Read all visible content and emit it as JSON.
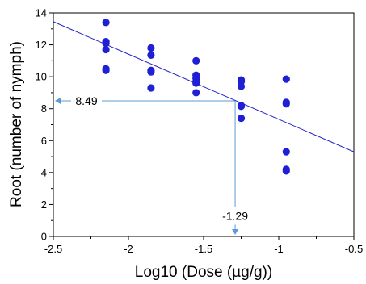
{
  "chart_data": {
    "type": "scatter",
    "title": "",
    "xlabel": "Log10 (Dose (µg/g))",
    "ylabel": "Root (number of nymph)",
    "xlim": [
      -2.5,
      -0.5
    ],
    "ylim": [
      0,
      14
    ],
    "xticks": [
      "-2.5",
      "-2",
      "-1.5",
      "-1",
      "-0.5"
    ],
    "yticks": [
      "0",
      "2",
      "4",
      "6",
      "8",
      "10",
      "12",
      "14"
    ],
    "grid": false,
    "colors": {
      "points": "#1f1fd6",
      "fit_line": "#2323c8",
      "annotation": "#5b9bd5"
    },
    "points": [
      {
        "x": -2.15,
        "y": 13.4
      },
      {
        "x": -2.15,
        "y": 12.2
      },
      {
        "x": -2.15,
        "y": 12.1
      },
      {
        "x": -2.15,
        "y": 11.7
      },
      {
        "x": -2.15,
        "y": 10.5
      },
      {
        "x": -2.15,
        "y": 10.4
      },
      {
        "x": -1.85,
        "y": 11.8
      },
      {
        "x": -1.85,
        "y": 11.35
      },
      {
        "x": -1.85,
        "y": 10.4
      },
      {
        "x": -1.85,
        "y": 10.3
      },
      {
        "x": -1.85,
        "y": 9.3
      },
      {
        "x": -1.55,
        "y": 11.0
      },
      {
        "x": -1.55,
        "y": 10.1
      },
      {
        "x": -1.55,
        "y": 9.9
      },
      {
        "x": -1.55,
        "y": 9.7
      },
      {
        "x": -1.55,
        "y": 9.6
      },
      {
        "x": -1.55,
        "y": 9.0
      },
      {
        "x": -1.25,
        "y": 9.8
      },
      {
        "x": -1.25,
        "y": 9.7
      },
      {
        "x": -1.25,
        "y": 9.4
      },
      {
        "x": -1.25,
        "y": 8.2
      },
      {
        "x": -1.25,
        "y": 8.15
      },
      {
        "x": -1.25,
        "y": 7.4
      },
      {
        "x": -0.95,
        "y": 9.85
      },
      {
        "x": -0.95,
        "y": 8.4
      },
      {
        "x": -0.95,
        "y": 8.3
      },
      {
        "x": -0.95,
        "y": 5.3
      },
      {
        "x": -0.95,
        "y": 4.2
      },
      {
        "x": -0.95,
        "y": 4.1
      }
    ],
    "fit_line": {
      "x": [
        -2.5,
        -0.5
      ],
      "y": [
        13.45,
        5.3
      ]
    },
    "annotations": [
      {
        "label": "8.49",
        "x": -1.29,
        "y": 8.49,
        "arrow_to": "y-axis"
      },
      {
        "label": "-1.29",
        "x": -1.29,
        "y": 8.49,
        "arrow_to": "x-axis"
      }
    ]
  }
}
